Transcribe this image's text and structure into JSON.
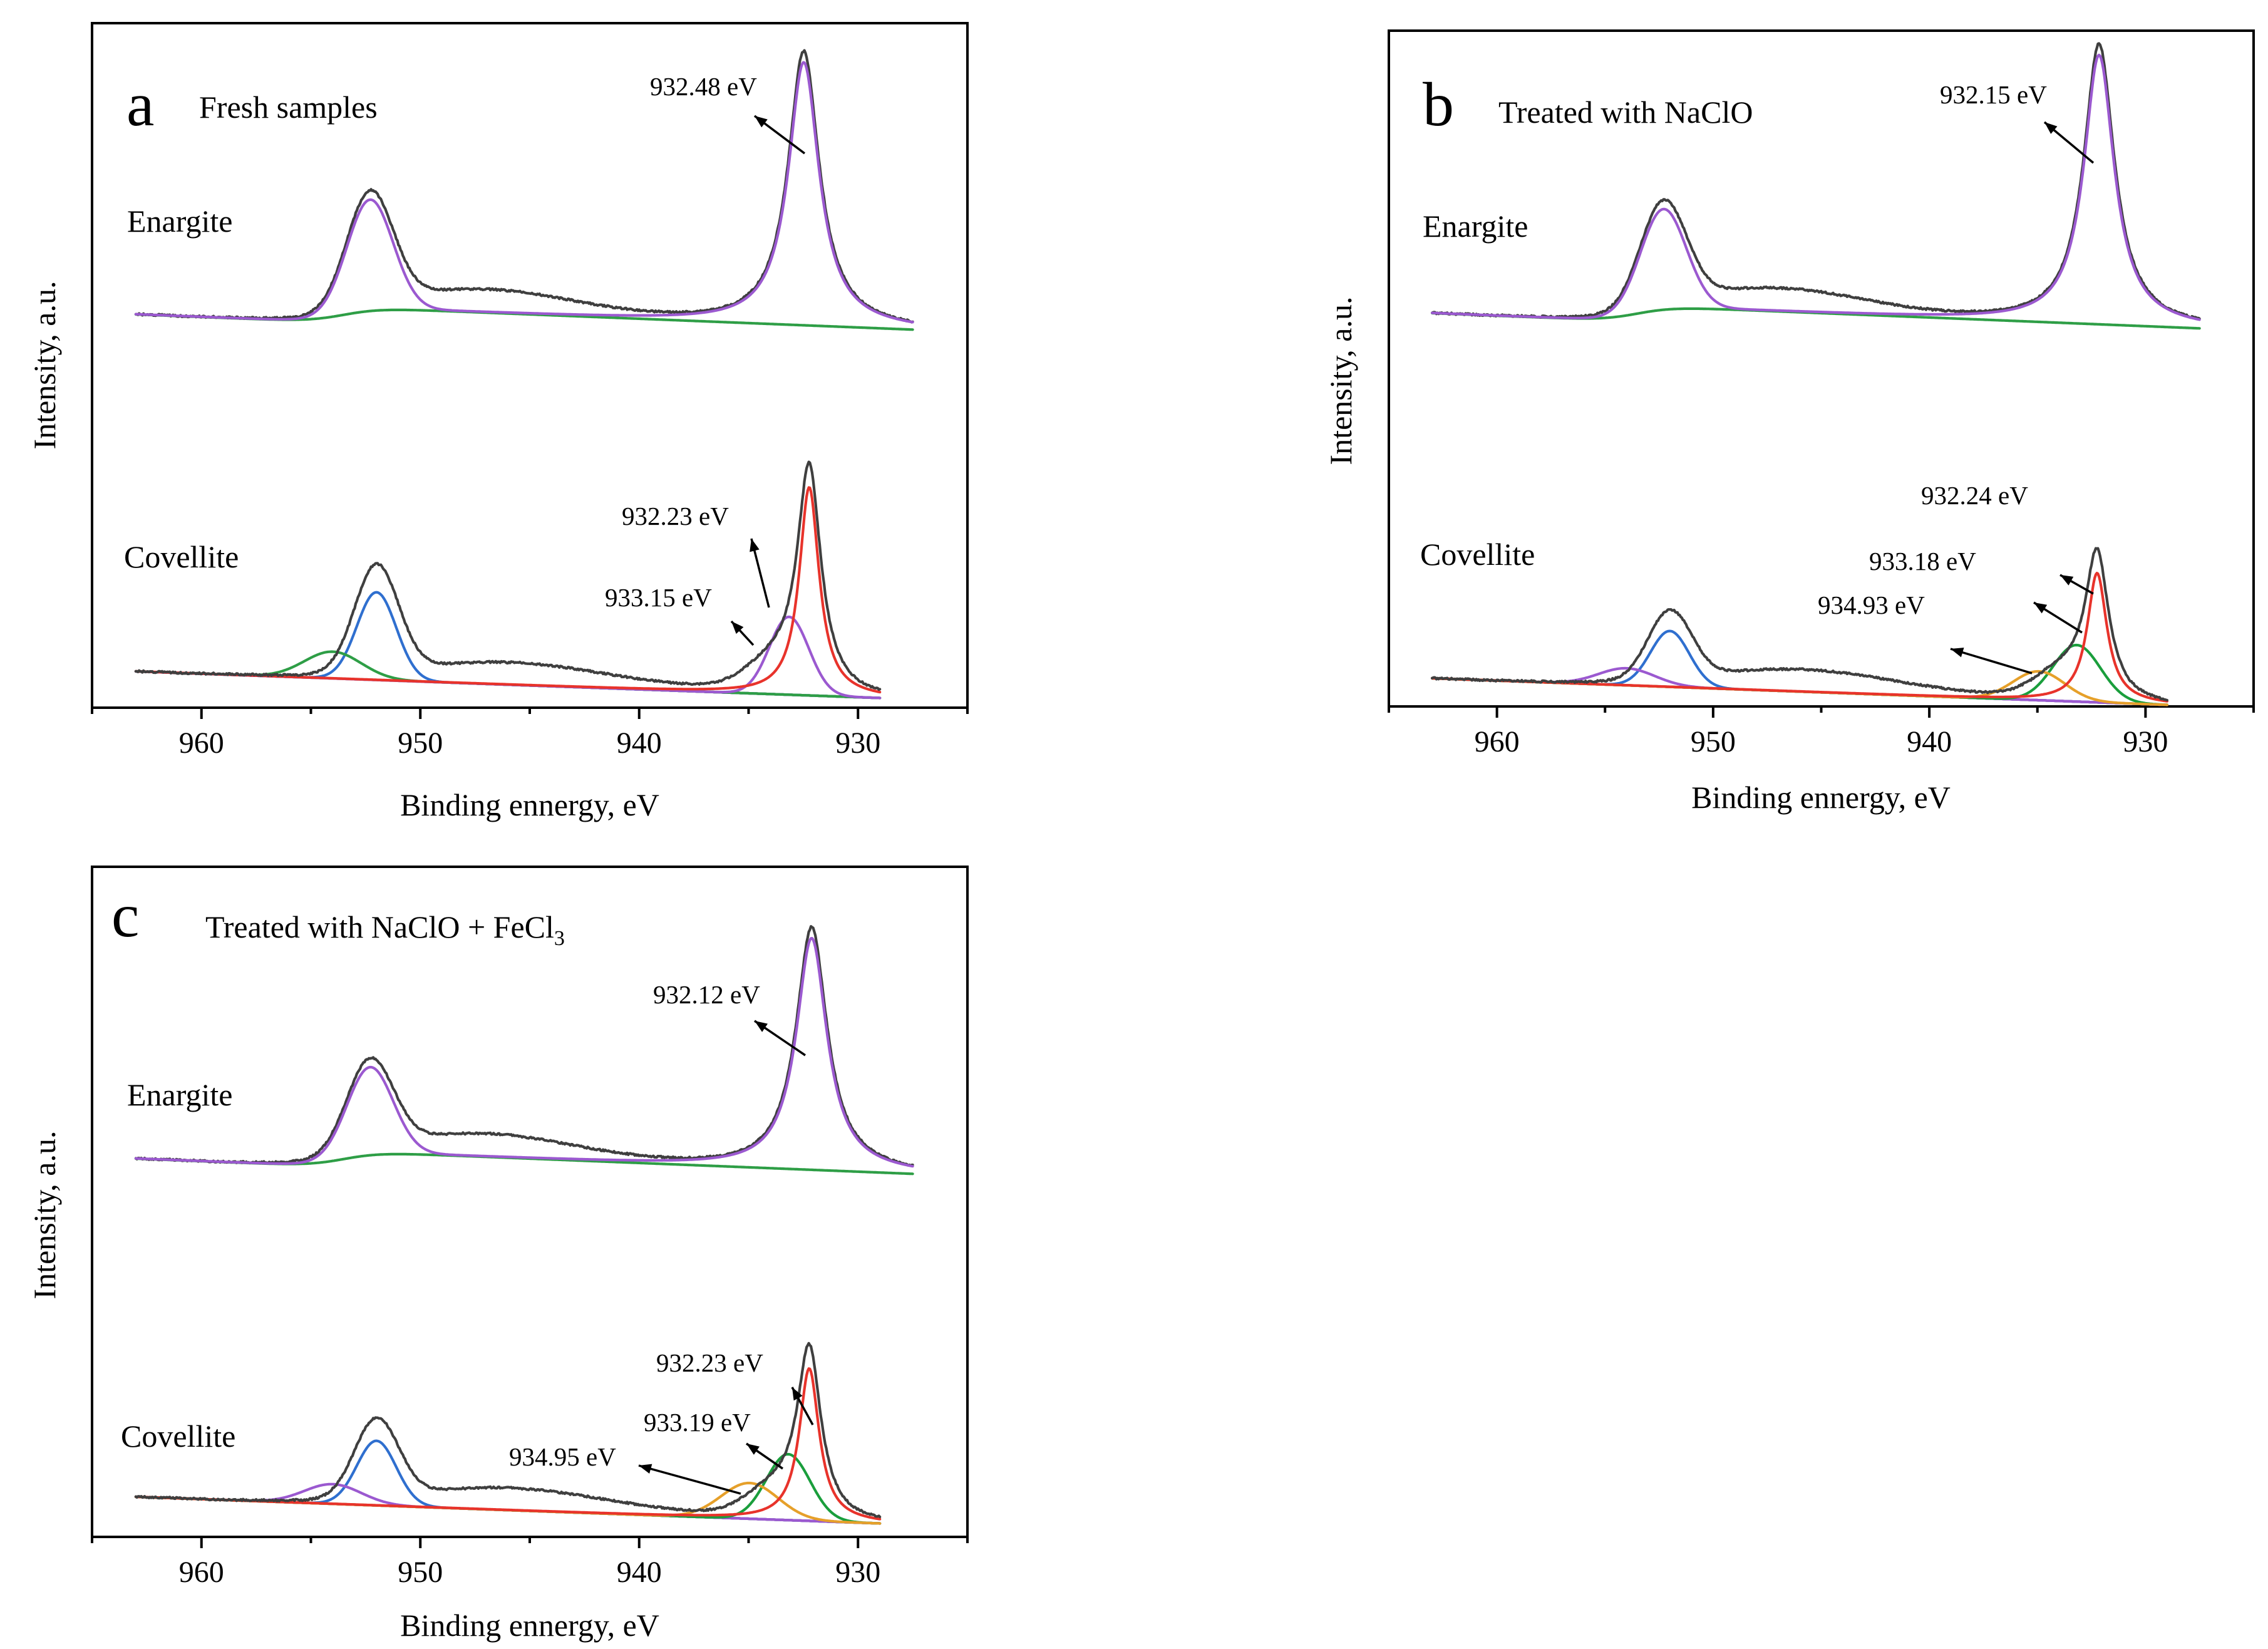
{
  "figure": {
    "colors": {
      "envelope": "#3f3f3f",
      "fit_a": "#9b59d0",
      "fit_b": "#2f6fcf",
      "fit_c": "#e8332b",
      "background_fit": "#2e9e46",
      "satellite": "#1a9e3c",
      "shakeup": "#e6a02a",
      "baseline_cov": "#c87a5a"
    },
    "panels": [
      {
        "letter": "a",
        "title": "Fresh samples",
        "title_sub": "",
        "xlabel": "Binding ennergy, eV",
        "ylabel": "Intensity, a.u.",
        "xlim": [
          965,
          925
        ],
        "xticks": [
          "960",
          "950",
          "940",
          "930"
        ],
        "samples": [
          {
            "name": "Enargite",
            "peaks": [
              {
                "label": "932.48 eV",
                "position": 932.48
              }
            ]
          },
          {
            "name": "Covellite",
            "peaks": [
              {
                "label": "932.23 eV",
                "position": 932.23
              },
              {
                "label": "933.15 eV",
                "position": 933.15
              }
            ]
          }
        ]
      },
      {
        "letter": "b",
        "title": "Treated with NaClO",
        "title_sub": "",
        "xlabel": "Binding ennergy, eV",
        "ylabel": "Intensity, a.u.",
        "xlim": [
          965,
          925
        ],
        "xticks": [
          "960",
          "950",
          "940",
          "930"
        ],
        "samples": [
          {
            "name": "Enargite",
            "peaks": [
              {
                "label": "932.15 eV",
                "position": 932.15
              }
            ]
          },
          {
            "name": "Covellite",
            "peaks": [
              {
                "label": "932.24 eV",
                "position": 932.24
              },
              {
                "label": "933.18 eV",
                "position": 933.18
              },
              {
                "label": "934.93 eV",
                "position": 934.93
              }
            ]
          }
        ]
      },
      {
        "letter": "c",
        "title": "Treated with NaClO + FeCl",
        "title_sub": "3",
        "xlabel": "Binding ennergy, eV",
        "ylabel": "Intensity, a.u.",
        "xlim": [
          965,
          925
        ],
        "xticks": [
          "960",
          "950",
          "940",
          "930"
        ],
        "samples": [
          {
            "name": "Enargite",
            "peaks": [
              {
                "label": "932.12 eV",
                "position": 932.12
              }
            ]
          },
          {
            "name": "Covellite",
            "peaks": [
              {
                "label": "932.23 eV",
                "position": 932.23
              },
              {
                "label": "933.19 eV",
                "position": 933.19
              },
              {
                "label": "934.95 eV",
                "position": 934.95
              }
            ]
          }
        ]
      }
    ]
  },
  "chart_data": [
    {
      "type": "line",
      "panel": "a",
      "title": "Fresh samples",
      "xlabel": "Binding ennergy, eV",
      "ylabel": "Intensity, a.u.",
      "xlim": [
        965,
        925
      ],
      "x_ticks": [
        960,
        950,
        940,
        930
      ],
      "y_ticks": [],
      "series": [
        {
          "name": "Enargite",
          "peaks_eV": [
            932.48,
            952.3
          ],
          "labels": [
            "932.48 eV"
          ]
        },
        {
          "name": "Covellite",
          "peaks_eV": [
            932.23,
            933.15,
            952.0
          ],
          "labels": [
            "932.23 eV",
            "933.15 eV"
          ]
        }
      ]
    },
    {
      "type": "line",
      "panel": "b",
      "title": "Treated with NaClO",
      "xlabel": "Binding ennergy, eV",
      "ylabel": "Intensity, a.u.",
      "xlim": [
        965,
        925
      ],
      "x_ticks": [
        960,
        950,
        940,
        930
      ],
      "y_ticks": [],
      "series": [
        {
          "name": "Enargite",
          "peaks_eV": [
            932.15,
            952.1
          ],
          "labels": [
            "932.15 eV"
          ]
        },
        {
          "name": "Covellite",
          "peaks_eV": [
            932.24,
            933.18,
            934.93,
            952.0
          ],
          "labels": [
            "932.24 eV",
            "933.18 eV",
            "934.93 eV"
          ]
        }
      ]
    },
    {
      "type": "line",
      "panel": "c",
      "title": "Treated with NaClO + FeCl3",
      "xlabel": "Binding ennergy, eV",
      "ylabel": "Intensity, a.u.",
      "xlim": [
        965,
        925
      ],
      "x_ticks": [
        960,
        950,
        940,
        930
      ],
      "y_ticks": [],
      "series": [
        {
          "name": "Enargite",
          "peaks_eV": [
            932.12,
            952.1
          ],
          "labels": [
            "932.12 eV"
          ]
        },
        {
          "name": "Covellite",
          "peaks_eV": [
            932.23,
            933.19,
            934.95,
            952.0
          ],
          "labels": [
            "932.23 eV",
            "933.19 eV",
            "934.95 eV"
          ]
        }
      ]
    }
  ]
}
